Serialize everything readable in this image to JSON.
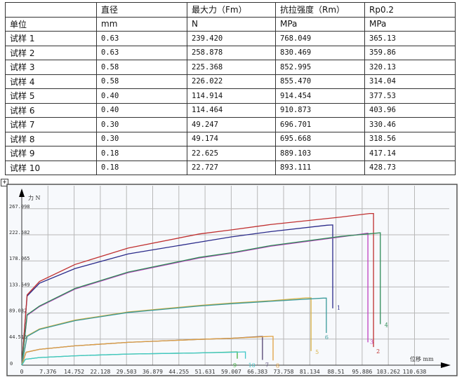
{
  "table": {
    "header": [
      "",
      "直径",
      "最大力（Fm）",
      "抗拉强度（Rm）",
      "Rp0.2"
    ],
    "units": [
      "单位",
      "mm",
      "N",
      "MPa",
      "MPa"
    ],
    "rows": [
      [
        "试样 1",
        "0.63",
        "239.420",
        "768.049",
        "365.13"
      ],
      [
        "试样 2",
        "0.63",
        "258.878",
        "830.469",
        "359.86"
      ],
      [
        "试样 3",
        "0.58",
        "225.368",
        "852.995",
        "320.13"
      ],
      [
        "试样 4",
        "0.58",
        "226.022",
        "855.470",
        "314.04"
      ],
      [
        "试样 5",
        "0.40",
        "114.914",
        "914.454",
        "377.53"
      ],
      [
        "试样 6",
        "0.40",
        "114.464",
        "910.873",
        "403.96"
      ],
      [
        "试样 7",
        "0.30",
        "49.247",
        "696.701",
        "330.46"
      ],
      [
        "试样 8",
        "0.30",
        "49.174",
        "695.668",
        "318.56"
      ],
      [
        "试样 9",
        "0.18",
        "22.625",
        "889.103",
        "417.14"
      ],
      [
        "试样 10",
        "0.18",
        "22.727",
        "893.111",
        "428.73"
      ]
    ]
  },
  "chart_data": {
    "type": "line",
    "xlabel": "位移 mm",
    "ylabel": "力 N",
    "xlim": [
      0,
      118
    ],
    "ylim": [
      0,
      300
    ],
    "xticks": [
      "0",
      "7.376",
      "14.752",
      "22.128",
      "29.503",
      "36.879",
      "44.255",
      "51.631",
      "59.007",
      "66.383",
      "73.758",
      "81.134",
      "88.51",
      "95.886",
      "103.262",
      "110.638"
    ],
    "yticks": [
      "0",
      "44.516",
      "89.032",
      "133.549",
      "178.065",
      "222.582",
      "267.098"
    ],
    "grid": true,
    "series": [
      {
        "name": "1",
        "color": "#2a2a8a",
        "points": [
          [
            0,
            0
          ],
          [
            1.5,
            118
          ],
          [
            5,
            140
          ],
          [
            15,
            165
          ],
          [
            30,
            190
          ],
          [
            50,
            210
          ],
          [
            59,
            219
          ],
          [
            70,
            228
          ],
          [
            86,
            239
          ],
          [
            87.6,
            239.4
          ],
          [
            87.6,
            97
          ]
        ]
      },
      {
        "name": "2",
        "color": "#c03030",
        "points": [
          [
            0,
            0
          ],
          [
            1.5,
            120
          ],
          [
            5,
            143
          ],
          [
            15,
            172
          ],
          [
            30,
            200
          ],
          [
            50,
            224
          ],
          [
            59,
            231
          ],
          [
            70,
            240
          ],
          [
            90,
            253
          ],
          [
            98,
            258.9
          ],
          [
            99.1,
            258.9
          ],
          [
            99.1,
            31
          ]
        ]
      },
      {
        "name": "3",
        "color": "#c040c0",
        "points": [
          [
            0,
            0
          ],
          [
            1.5,
            85
          ],
          [
            5,
            100
          ],
          [
            15,
            130
          ],
          [
            30,
            158
          ],
          [
            50,
            183
          ],
          [
            59,
            191
          ],
          [
            70,
            203
          ],
          [
            90,
            219
          ],
          [
            97.5,
            225.4
          ],
          [
            97.5,
            39
          ]
        ]
      },
      {
        "name": "4",
        "color": "#2e8b57",
        "points": [
          [
            0,
            0
          ],
          [
            1.5,
            86
          ],
          [
            5,
            101
          ],
          [
            15,
            131
          ],
          [
            30,
            159
          ],
          [
            50,
            184
          ],
          [
            59,
            192
          ],
          [
            70,
            204
          ],
          [
            90,
            220
          ],
          [
            101,
            226
          ],
          [
            101,
            70
          ]
        ]
      },
      {
        "name": "5",
        "color": "#d8b040",
        "points": [
          [
            0,
            0
          ],
          [
            1.5,
            50
          ],
          [
            5,
            62
          ],
          [
            15,
            77
          ],
          [
            30,
            91
          ],
          [
            50,
            102
          ],
          [
            59,
            106
          ],
          [
            70,
            110
          ],
          [
            80,
            114.9
          ],
          [
            81.5,
            114.9
          ],
          [
            81.5,
            24
          ]
        ]
      },
      {
        "name": "6",
        "color": "#3a9a9a",
        "points": [
          [
            0,
            0
          ],
          [
            1.5,
            49
          ],
          [
            5,
            61
          ],
          [
            15,
            76
          ],
          [
            30,
            90
          ],
          [
            50,
            101
          ],
          [
            59,
            105
          ],
          [
            70,
            109
          ],
          [
            85,
            114.5
          ],
          [
            85.8,
            114.5
          ],
          [
            85.8,
            55
          ]
        ]
      },
      {
        "name": "7",
        "color": "#504070",
        "points": [
          [
            0,
            0
          ],
          [
            1.2,
            22
          ],
          [
            5,
            27
          ],
          [
            15,
            33
          ],
          [
            30,
            39
          ],
          [
            50,
            44
          ],
          [
            59,
            46
          ],
          [
            67.8,
            49.2
          ],
          [
            67.8,
            9
          ]
        ]
      },
      {
        "name": "8",
        "color": "#e0a040",
        "points": [
          [
            0,
            0
          ],
          [
            1.2,
            22
          ],
          [
            5,
            27
          ],
          [
            15,
            33
          ],
          [
            30,
            39
          ],
          [
            50,
            44
          ],
          [
            59,
            46
          ],
          [
            70,
            49.2
          ],
          [
            70.8,
            49.2
          ],
          [
            70.8,
            8
          ]
        ]
      },
      {
        "name": "9",
        "color": "#40b040",
        "points": [
          [
            0,
            0
          ],
          [
            1,
            10
          ],
          [
            5,
            13
          ],
          [
            15,
            16
          ],
          [
            30,
            19
          ],
          [
            50,
            21
          ],
          [
            60.7,
            22.6
          ],
          [
            60.7,
            11
          ]
        ]
      },
      {
        "name": "10",
        "color": "#40c8c8",
        "points": [
          [
            0,
            0
          ],
          [
            1,
            10
          ],
          [
            5,
            13
          ],
          [
            15,
            16
          ],
          [
            30,
            19
          ],
          [
            50,
            21
          ],
          [
            59,
            22
          ],
          [
            63,
            22.7
          ],
          [
            63,
            11
          ]
        ]
      }
    ]
  }
}
